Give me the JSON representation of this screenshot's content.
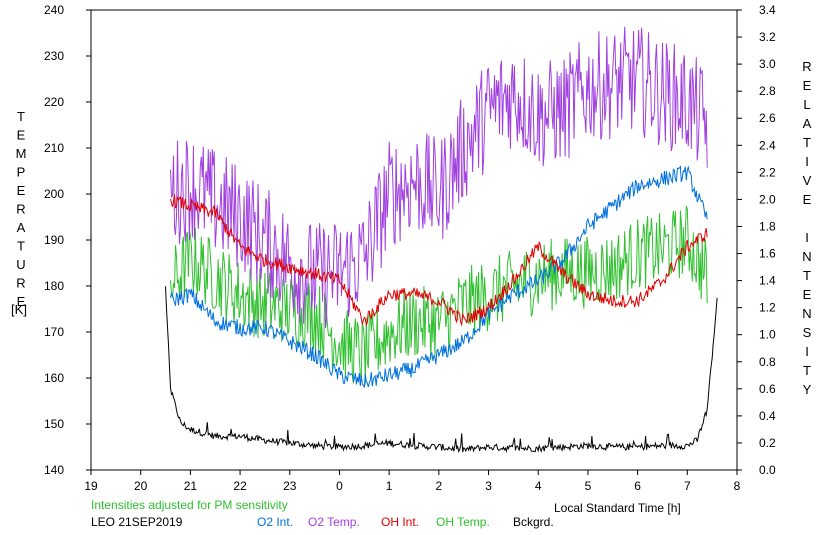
{
  "chart_data": {
    "type": "line",
    "title": "",
    "left_axis_label": "TEMPERATURE",
    "left_axis_unit": "[K]",
    "right_axis_label": "RELATIVE INTENSITY",
    "xlabel": "Local Standard Time [h]",
    "x_ticks": [
      "19",
      "20",
      "21",
      "22",
      "23",
      "0",
      "1",
      "2",
      "3",
      "4",
      "5",
      "6",
      "7",
      "8"
    ],
    "x_range_hours": [
      19,
      32
    ],
    "ylim_left": [
      140,
      240
    ],
    "y_ticks_left": [
      "140",
      "150",
      "160",
      "170",
      "180",
      "190",
      "200",
      "210",
      "220",
      "230",
      "240"
    ],
    "ylim_right": [
      0.0,
      3.4
    ],
    "y_ticks_right": [
      "0.0",
      "0.2",
      "0.4",
      "0.6",
      "0.8",
      "1.0",
      "1.2",
      "1.4",
      "1.6",
      "1.8",
      "2.0",
      "2.2",
      "2.4",
      "2.6",
      "2.8",
      "3.0",
      "3.2",
      "3.4"
    ],
    "grid": false,
    "note": "Intensities adjusted for PM sensitivity",
    "station_date": "LEO 21SEP2019",
    "series": [
      {
        "name": "O2 Int.",
        "axis": "right",
        "color": "#0070e0",
        "x": [
          20.6,
          21.0,
          21.5,
          22.0,
          22.5,
          23.0,
          23.5,
          24.0,
          24.5,
          25.0,
          25.5,
          26.0,
          26.5,
          27.0,
          27.5,
          28.0,
          28.5,
          29.0,
          29.5,
          30.0,
          30.5,
          31.0,
          31.4
        ],
        "values": [
          1.25,
          1.3,
          1.1,
          1.05,
          1.05,
          0.95,
          0.85,
          0.7,
          0.65,
          0.7,
          0.75,
          0.85,
          0.95,
          1.15,
          1.3,
          1.4,
          1.55,
          1.8,
          1.95,
          2.1,
          2.15,
          2.2,
          1.85
        ]
      },
      {
        "name": "O2 Temp.",
        "axis": "left",
        "color": "#a040e0",
        "x": [
          20.6,
          21.0,
          21.5,
          22.0,
          22.5,
          23.0,
          23.5,
          24.0,
          24.5,
          25.0,
          25.5,
          26.0,
          26.5,
          27.0,
          27.5,
          28.0,
          28.5,
          29.0,
          29.5,
          30.0,
          30.5,
          31.0,
          31.4
        ],
        "values": [
          200,
          202,
          198,
          195,
          190,
          185,
          182,
          183,
          186,
          200,
          203,
          200,
          210,
          218,
          222,
          217,
          218,
          223,
          224,
          225,
          222,
          220,
          215
        ]
      },
      {
        "name": "OH Int.",
        "axis": "right",
        "color": "#e00000",
        "x": [
          20.6,
          21.0,
          21.5,
          22.0,
          22.5,
          23.0,
          23.5,
          24.0,
          24.5,
          25.0,
          25.5,
          26.0,
          26.5,
          27.0,
          27.5,
          28.0,
          28.5,
          29.0,
          29.5,
          30.0,
          30.5,
          31.0,
          31.4
        ],
        "values": [
          2.0,
          1.95,
          1.9,
          1.65,
          1.55,
          1.5,
          1.45,
          1.4,
          1.1,
          1.3,
          1.3,
          1.25,
          1.1,
          1.2,
          1.4,
          1.65,
          1.45,
          1.3,
          1.25,
          1.25,
          1.4,
          1.65,
          1.75
        ]
      },
      {
        "name": "OH Temp.",
        "axis": "left",
        "color": "#30c030",
        "x": [
          20.6,
          21.0,
          21.5,
          22.0,
          22.5,
          23.0,
          23.5,
          24.0,
          24.5,
          25.0,
          25.5,
          26.0,
          26.5,
          27.0,
          27.5,
          28.0,
          28.5,
          29.0,
          29.5,
          30.0,
          30.5,
          31.0,
          31.4
        ],
        "values": [
          180,
          186,
          182,
          178,
          176,
          175,
          174,
          168,
          165,
          170,
          172,
          172,
          176,
          178,
          180,
          182,
          183,
          183,
          184,
          187,
          188,
          190,
          182
        ]
      },
      {
        "name": "Bckgrd.",
        "axis": "right",
        "color": "#000000",
        "x": [
          20.5,
          20.6,
          20.8,
          21.0,
          21.5,
          22.0,
          22.5,
          23.0,
          23.5,
          24.0,
          24.5,
          25.0,
          25.5,
          26.0,
          26.5,
          27.0,
          27.5,
          28.0,
          28.5,
          29.0,
          29.5,
          30.0,
          30.5,
          31.0,
          31.2,
          31.4,
          31.6
        ],
        "values": [
          1.35,
          0.6,
          0.35,
          0.3,
          0.25,
          0.25,
          0.22,
          0.2,
          0.18,
          0.17,
          0.18,
          0.2,
          0.18,
          0.17,
          0.15,
          0.17,
          0.16,
          0.16,
          0.17,
          0.18,
          0.17,
          0.17,
          0.18,
          0.18,
          0.22,
          0.45,
          1.25
        ]
      }
    ]
  }
}
